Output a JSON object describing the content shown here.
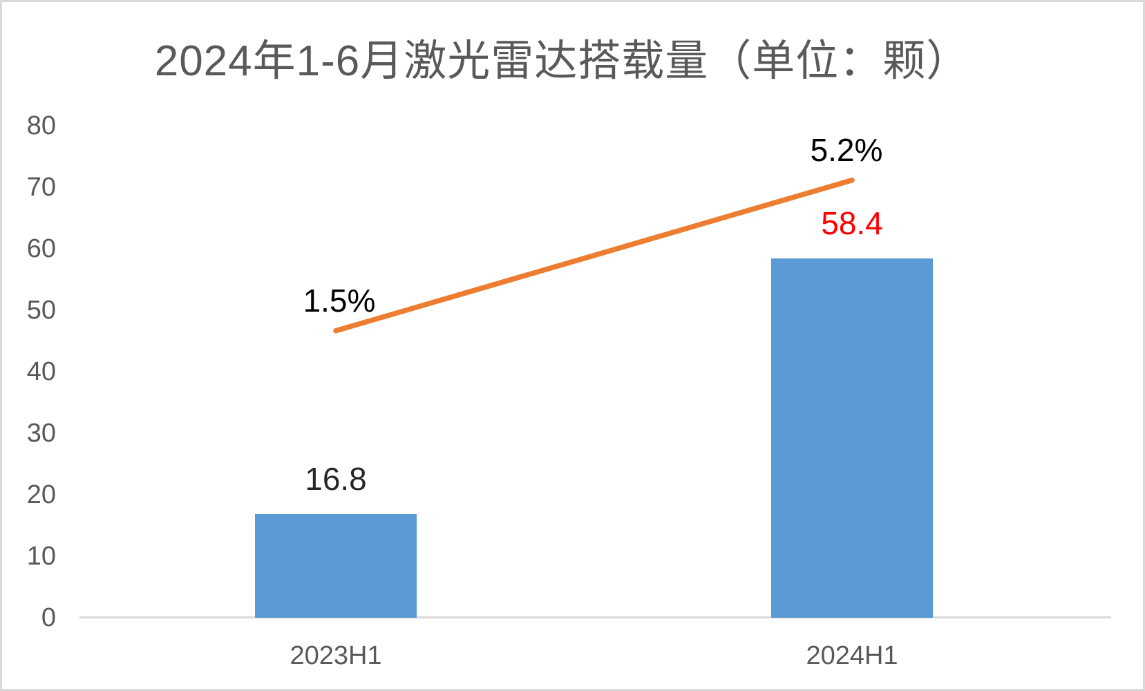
{
  "chart_data": {
    "type": "bar",
    "title": "2024年1-6月激光雷达搭载量（单位：颗）",
    "categories": [
      "2023H1",
      "2024H1"
    ],
    "series": [
      {
        "name": "bar-series",
        "type": "bar",
        "values": [
          16.8,
          58.4
        ],
        "data_labels": [
          "16.8",
          "58.4"
        ],
        "data_label_colors": [
          "#262626",
          "#FF0000"
        ],
        "color": "#5B9BD5"
      },
      {
        "name": "line-series",
        "type": "line",
        "values": [
          1.5,
          5.2
        ],
        "data_labels": [
          "1.5%",
          "5.2%"
        ],
        "data_label_color": "#000000",
        "color": "#ED7D31",
        "axis": "secondary-hidden"
      }
    ],
    "y_axis": {
      "min": 0,
      "max": 80,
      "step": 10,
      "tick_labels": [
        "0",
        "10",
        "20",
        "30",
        "40",
        "50",
        "60",
        "70",
        "80"
      ]
    },
    "xlabel": "",
    "ylabel": "",
    "legend": "none",
    "grid": false,
    "colors": {
      "background": "#FFFFFF",
      "border": "#D9D9D9",
      "axis_line": "#D9D9D9",
      "axis_text": "#595959",
      "title_text": "#595959",
      "bar": "#5B9BD5",
      "line": "#ED7D31",
      "highlight_label": "#FF0000"
    }
  }
}
